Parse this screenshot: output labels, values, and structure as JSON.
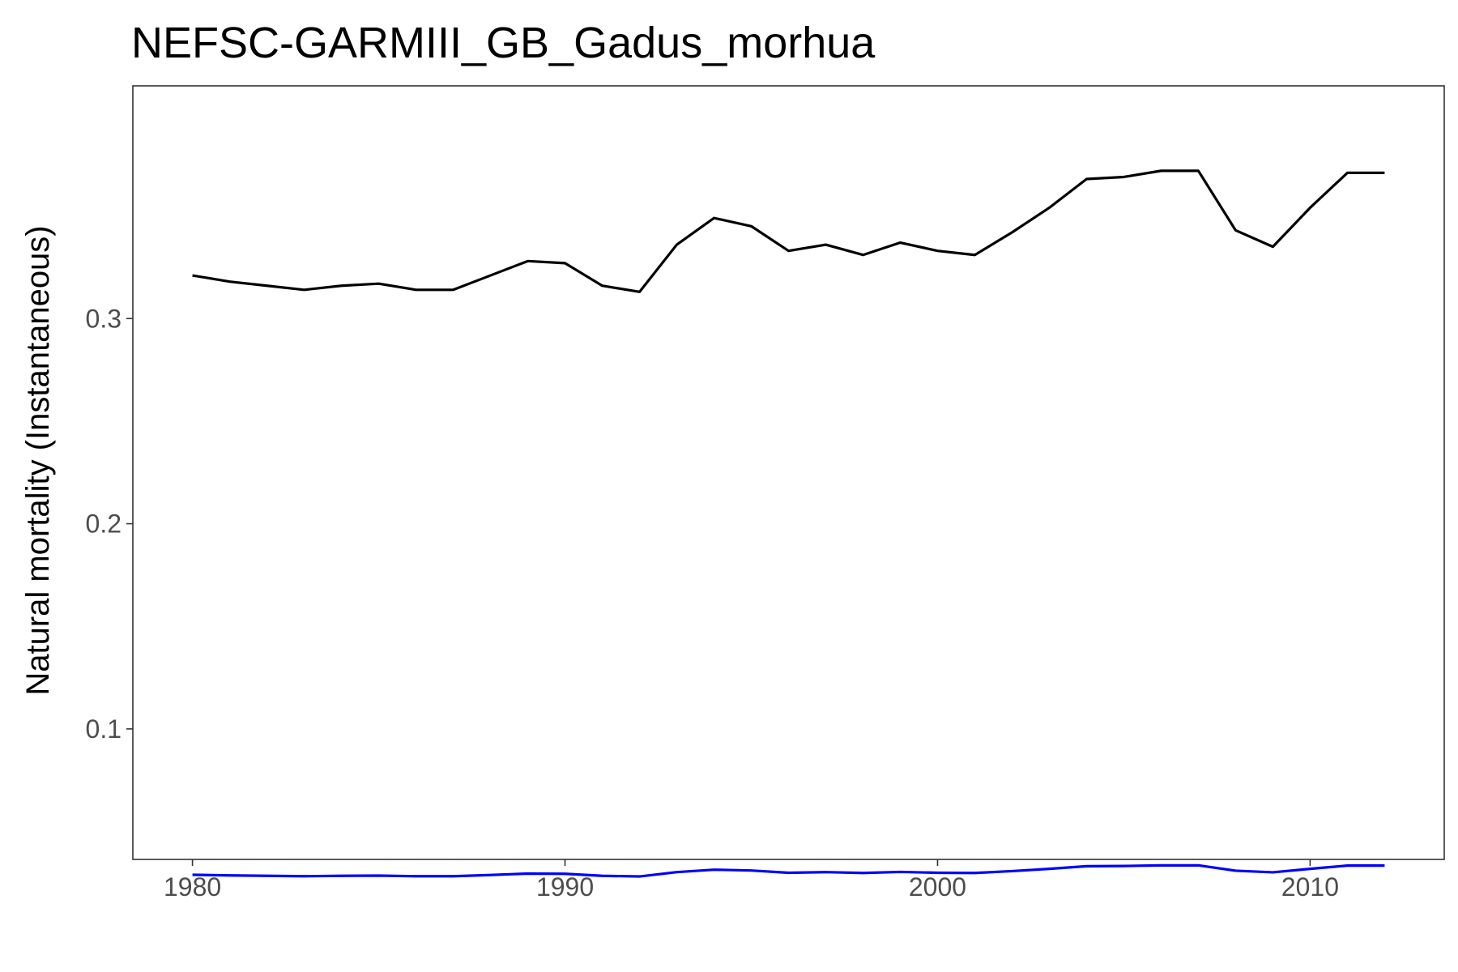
{
  "chart_data": {
    "type": "line",
    "title": "NEFSC-GARMIII_GB_Gadus_morhua",
    "xlabel": "",
    "ylabel": "Natural mortality (Instantaneous)",
    "xlim": [
      1978.4,
      2013.6
    ],
    "ylim": [
      0.0364,
      0.4134
    ],
    "x_ticks": [
      1980,
      1990,
      2000,
      2010
    ],
    "y_ticks": [
      0.1,
      0.2,
      0.3
    ],
    "grid": false,
    "legend": "none",
    "x": [
      1980,
      1981,
      1982,
      1983,
      1984,
      1985,
      1986,
      1987,
      1988,
      1989,
      1990,
      1991,
      1992,
      1993,
      1994,
      1995,
      1996,
      1997,
      1998,
      1999,
      2000,
      2001,
      2002,
      2003,
      2004,
      2005,
      2006,
      2007,
      2008,
      2009,
      2010,
      2011,
      2012
    ],
    "series": [
      {
        "color": "#000000",
        "values": [
          0.321,
          0.318,
          0.316,
          0.314,
          0.316,
          0.317,
          0.314,
          0.314,
          0.321,
          0.328,
          0.327,
          0.316,
          0.313,
          0.336,
          0.349,
          0.345,
          0.333,
          0.336,
          0.331,
          0.337,
          0.333,
          0.331,
          0.342,
          0.354,
          0.368,
          0.369,
          0.372,
          0.372,
          0.343,
          0.335,
          0.354,
          0.371,
          0.371
        ]
      },
      {
        "color": "#0000ff",
        "values": [
          0.0289,
          0.0286,
          0.0284,
          0.0282,
          0.0284,
          0.0285,
          0.0282,
          0.0282,
          0.0288,
          0.0295,
          0.0294,
          0.0284,
          0.0281,
          0.0302,
          0.0314,
          0.031,
          0.0299,
          0.0302,
          0.0298,
          0.0303,
          0.0299,
          0.0298,
          0.0307,
          0.0318,
          0.0331,
          0.0332,
          0.0335,
          0.0335,
          0.0309,
          0.0301,
          0.0318,
          0.0334,
          0.0334
        ]
      }
    ]
  }
}
